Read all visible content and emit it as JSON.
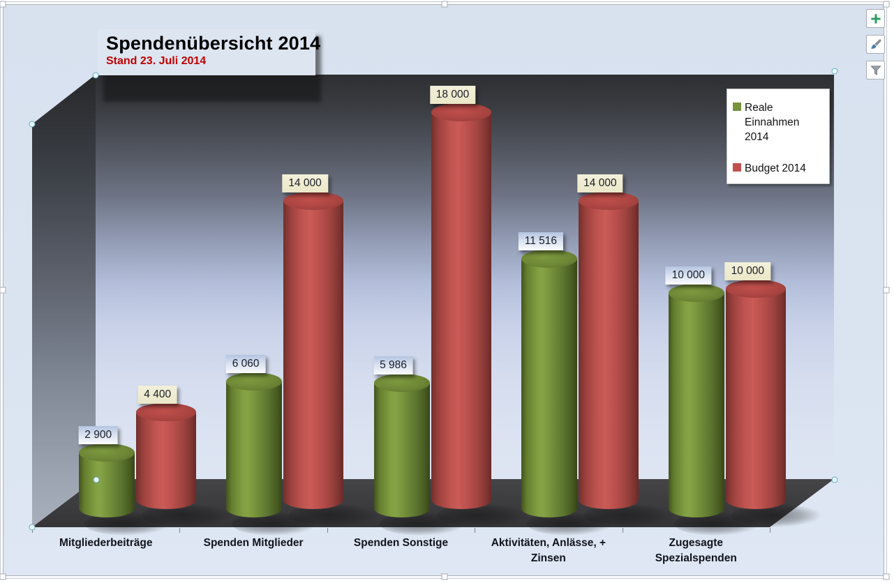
{
  "chart_data": {
    "type": "bar",
    "subtype": "3d-cylinder",
    "title": "Spendenübersicht 2014",
    "subtitle": "Stand 23. Juli 2014",
    "categories": [
      "Mitgliederbeiträge",
      "Spenden Mitglieder",
      "Spenden Sonstige",
      "Aktivitäten, Anlässe, + Zinsen",
      "Zugesagte Spezialspenden"
    ],
    "category_label_lines": [
      [
        "Mitgliederbeiträge"
      ],
      [
        "Spenden Mitglieder"
      ],
      [
        "Spenden Sonstige"
      ],
      [
        "Aktivitäten, Anlässe, +",
        "Zinsen"
      ],
      [
        "Zugesagte",
        "Spezialspenden"
      ]
    ],
    "series": [
      {
        "name": "Reale Einnahmen 2014",
        "color": "#77933c",
        "values": [
          2900,
          6060,
          5986,
          11516,
          10000
        ],
        "data_labels": [
          "2 900",
          "6 060",
          "5 986",
          "11 516",
          "10 000"
        ]
      },
      {
        "name": "Budget 2014",
        "color": "#c0504d",
        "values": [
          4400,
          14000,
          18000,
          14000,
          10000
        ],
        "data_labels": [
          "4 400",
          "14 000",
          "18 000",
          "14 000",
          "10 000"
        ]
      }
    ],
    "legend_position": "top-right",
    "gridlines": false,
    "value_axis": "hidden"
  },
  "selection": {
    "state": "chart-selected"
  },
  "side_buttons": {
    "plus_color": "#2d9c62",
    "brush_handle_color": "#8a9099",
    "brush_tip_color": "#4a7dab",
    "funnel_color": "#9aa0a8"
  },
  "colors": {
    "chart_background": "#dae4f1",
    "wall_dark": "#2e2f32",
    "wall_light": "#dee5f2",
    "floor": "#3b3b3d",
    "subtitle_red": "#c00000",
    "green_label_bg": "#b5c5e1",
    "red_label_bg": "#f3f0da"
  }
}
